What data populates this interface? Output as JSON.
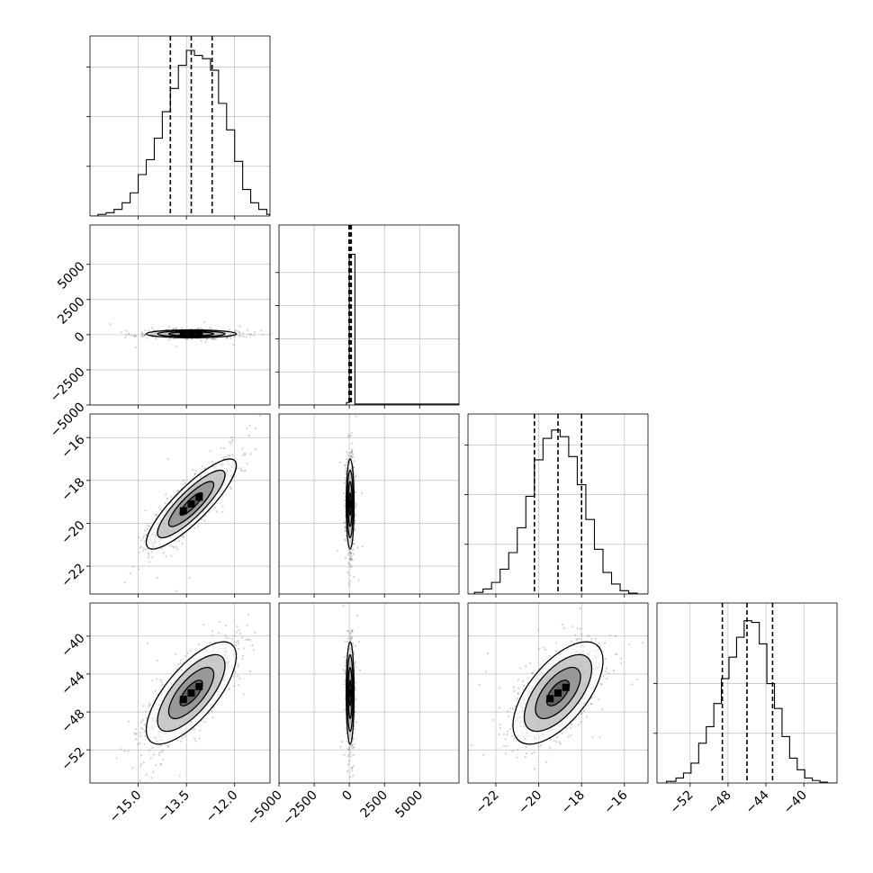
{
  "chart_data": {
    "type": "corner",
    "title": "",
    "parameters": [
      {
        "range": [
          -16.5,
          -10.9
        ],
        "ticks": [
          -15.0,
          -13.5,
          -12.0
        ],
        "tick_labels": [
          "−15.0",
          "−13.5",
          "−12.0"
        ],
        "quantiles": [
          -14.0,
          -13.35,
          -12.7
        ],
        "hist_ymax": 1.0,
        "hist_yticks": [
          0.3,
          0.6,
          0.9
        ],
        "hist_edges": [
          -16.5,
          -16.25,
          -16.0,
          -15.75,
          -15.5,
          -15.25,
          -15.0,
          -14.75,
          -14.5,
          -14.25,
          -14.0,
          -13.75,
          -13.5,
          -13.25,
          -13.0,
          -12.75,
          -12.5,
          -12.25,
          -12.0,
          -11.75,
          -11.5,
          -11.25,
          -11.0,
          -10.9
        ],
        "hist_counts": [
          0,
          0.01,
          0.02,
          0.04,
          0.08,
          0.14,
          0.25,
          0.34,
          0.47,
          0.63,
          0.77,
          0.91,
          1.0,
          0.97,
          0.95,
          0.88,
          0.68,
          0.52,
          0.33,
          0.16,
          0.08,
          0.04,
          0.01
        ]
      },
      {
        "range": [
          -5000,
          7800
        ],
        "ticks": [
          -5000,
          -2500,
          0,
          2500,
          5000
        ],
        "tick_labels": [
          "−5000",
          "−2500",
          "0",
          "2500",
          "5000"
        ],
        "quantiles": [
          -20,
          60,
          140
        ],
        "hist_ymax": 1.0,
        "hist_yticks": [
          0.2,
          0.4,
          0.6,
          0.8
        ],
        "hist_edges": [
          -5000,
          -200,
          0,
          400,
          7800
        ],
        "hist_counts": [
          0,
          0.015,
          0.91,
          0.006
        ]
      },
      {
        "range": [
          -23.3,
          -14.9
        ],
        "ticks": [
          -22,
          -20,
          -18,
          -16
        ],
        "tick_labels": [
          "−22",
          "−20",
          "−18",
          "−16"
        ],
        "quantiles": [
          -20.2,
          -19.1,
          -18.0
        ],
        "hist_ymax": 1.0,
        "hist_yticks": [
          0.3,
          0.6,
          0.9
        ],
        "hist_edges": [
          -23.3,
          -23.0,
          -22.6,
          -22.2,
          -21.8,
          -21.4,
          -21.0,
          -20.6,
          -20.2,
          -19.8,
          -19.4,
          -19.0,
          -18.6,
          -18.2,
          -17.8,
          -17.4,
          -17.0,
          -16.6,
          -16.2,
          -15.8,
          -15.4,
          -14.9
        ],
        "hist_counts": [
          0,
          0.01,
          0.03,
          0.07,
          0.15,
          0.25,
          0.4,
          0.59,
          0.81,
          0.94,
          0.99,
          0.95,
          0.83,
          0.66,
          0.45,
          0.27,
          0.13,
          0.06,
          0.02,
          0.005,
          0
        ]
      },
      {
        "range": [
          -55.5,
          -36.5
        ],
        "ticks": [
          -52,
          -48,
          -44,
          -40
        ],
        "tick_labels": [
          "−52",
          "−48",
          "−44",
          "−40"
        ],
        "quantiles": [
          -48.6,
          -46.0,
          -43.3
        ],
        "hist_ymax": 1.0,
        "hist_yticks": [
          0.3,
          0.6
        ],
        "hist_edges": [
          -55.5,
          -54.5,
          -53.5,
          -52.7,
          -51.9,
          -51.1,
          -50.3,
          -49.5,
          -48.7,
          -47.9,
          -47.1,
          -46.3,
          -45.5,
          -44.7,
          -43.9,
          -43.1,
          -42.3,
          -41.5,
          -40.7,
          -39.9,
          -39.1,
          -38.3,
          -37.5,
          -36.5
        ],
        "hist_counts": [
          0,
          0.01,
          0.03,
          0.06,
          0.12,
          0.24,
          0.34,
          0.48,
          0.63,
          0.76,
          0.88,
          0.98,
          0.97,
          0.84,
          0.6,
          0.45,
          0.28,
          0.15,
          0.08,
          0.03,
          0.015,
          0.005,
          0
        ]
      }
    ],
    "row_tick_sets": {
      "1": {
        "ticks": [
          -5000,
          -2500,
          0,
          2500,
          5000
        ],
        "tick_labels": [
          "−5000",
          "−2500",
          "0",
          "2500",
          "5000"
        ]
      },
      "2": {
        "ticks": [
          -22,
          -20,
          -18,
          -16
        ],
        "tick_labels": [
          "−22",
          "−20",
          "−18",
          "−16"
        ]
      },
      "3": {
        "ticks": [
          -52,
          -48,
          -44,
          -40
        ],
        "tick_labels": [
          "−52",
          "−48",
          "−44",
          "−40"
        ]
      }
    },
    "scatter_panels": [
      {
        "row": 1,
        "col": 0,
        "mean": [
          -13.35,
          60
        ],
        "sd": [
          0.7,
          140
        ],
        "corr": 0.0
      },
      {
        "row": 2,
        "col": 0,
        "mean": [
          -13.35,
          -19.1
        ],
        "sd": [
          0.7,
          1.05
        ],
        "corr": 0.86
      },
      {
        "row": 2,
        "col": 1,
        "mean": [
          60,
          -19.1
        ],
        "sd": [
          140,
          1.05
        ],
        "corr": 0.0
      },
      {
        "row": 3,
        "col": 0,
        "mean": [
          -13.35,
          -46.0
        ],
        "sd": [
          0.7,
          2.7
        ],
        "corr": 0.72
      },
      {
        "row": 3,
        "col": 1,
        "mean": [
          60,
          -46.0
        ],
        "sd": [
          140,
          2.7
        ],
        "corr": 0.0
      },
      {
        "row": 3,
        "col": 2,
        "mean": [
          -19.1,
          -46.0
        ],
        "sd": [
          1.05,
          2.7
        ],
        "corr": 0.63
      }
    ],
    "contour_levels_sigma": [
      0.5,
      1.0,
      1.5,
      2.0
    ],
    "grid": true,
    "colors": {
      "line": "#000000",
      "grid": "#b0b0b0",
      "points": "#7f7f7f"
    }
  }
}
